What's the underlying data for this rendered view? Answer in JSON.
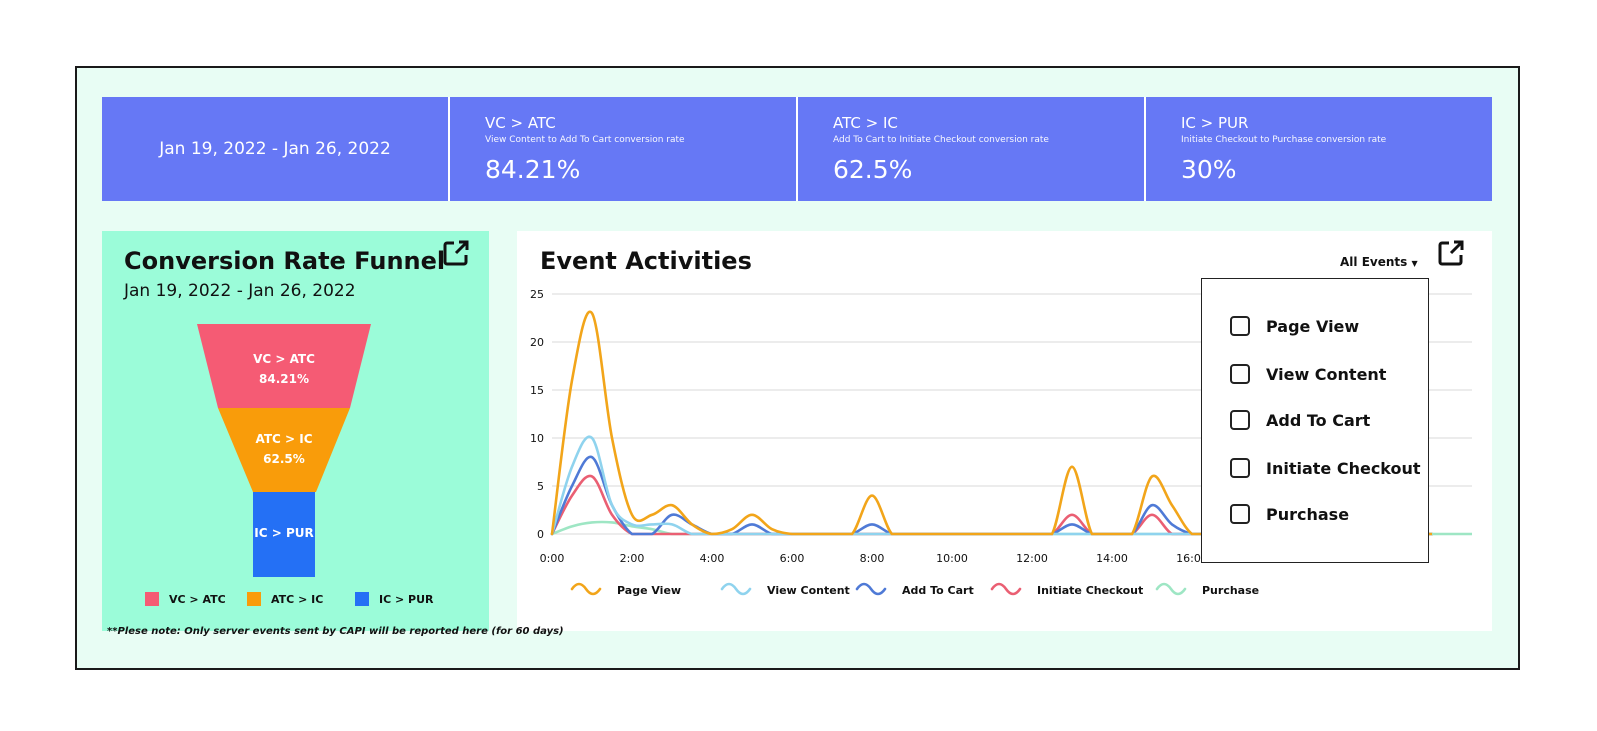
{
  "stats": {
    "date_range": "Jan 19, 2022 - Jan 26, 2022",
    "cards": [
      {
        "title": "VC > ATC",
        "subtitle": "View Content to Add To Cart conversion rate",
        "value": "84.21%"
      },
      {
        "title": "ATC > IC",
        "subtitle": "Add To Cart to Initiate Checkout conversion rate",
        "value": "62.5%"
      },
      {
        "title": "IC > PUR",
        "subtitle": "Initiate Checkout to Purchase conversion rate",
        "value": "30%"
      }
    ]
  },
  "funnel": {
    "title": "Conversion Rate Funnel",
    "date_range": "Jan 19, 2022 - Jan 26, 2022",
    "stages": [
      {
        "label": "VC > ATC",
        "value": "84.21%",
        "color": "#f55b74"
      },
      {
        "label": "ATC > IC",
        "value": "62.5%",
        "color": "#f99c0a"
      },
      {
        "label": "IC > PUR",
        "value": "",
        "color": "#2470f5"
      }
    ],
    "legend": [
      "VC > ATC",
      "ATC > IC",
      "IC > PUR"
    ]
  },
  "activity": {
    "title": "Event Activities",
    "filter_label": "All Events",
    "dropdown_options": [
      "Page View",
      "View Content",
      "Add To Cart",
      "Initiate Checkout",
      "Purchase"
    ]
  },
  "note": "**Plese note: Only server events sent by CAPI will be reported here (for 60 days)",
  "chart_data": {
    "type": "line",
    "x": [
      0,
      0.5,
      1,
      1.5,
      2,
      2.5,
      3,
      3.5,
      4,
      4.5,
      5,
      5.5,
      6,
      6.5,
      7,
      7.5,
      8,
      8.5,
      9,
      9.5,
      10,
      10.5,
      11,
      11.5,
      12,
      12.5,
      13,
      13.5,
      14,
      14.5,
      15,
      15.5,
      16,
      16.5,
      17,
      17.5,
      18,
      18.5,
      19,
      19.5,
      20,
      20.5,
      21,
      21.5,
      22
    ],
    "x_ticks": [
      "0:00",
      "2:00",
      "4:00",
      "6:00",
      "8:00",
      "10:00",
      "12:00",
      "14:00",
      "16:00"
    ],
    "y_ticks": [
      0,
      5,
      10,
      15,
      20,
      25
    ],
    "ylim": [
      0,
      25
    ],
    "xlim": [
      0,
      23
    ],
    "grid": true,
    "legend_position": "bottom",
    "series": [
      {
        "name": "Page View",
        "color": "#f2a51a",
        "values": [
          0,
          16,
          23,
          10,
          2,
          2,
          3,
          1,
          0,
          0.5,
          2,
          0.5,
          0,
          0,
          0,
          0,
          4,
          0,
          0,
          0,
          0,
          0,
          0,
          0,
          0,
          0,
          7,
          0,
          0,
          0,
          6,
          3,
          0,
          0,
          0,
          0,
          0,
          0,
          0,
          0,
          0,
          0,
          0,
          0,
          0
        ]
      },
      {
        "name": "View Content",
        "color": "#8fd3ee",
        "values": [
          0,
          7,
          10,
          3,
          1,
          1,
          1,
          0,
          0,
          0,
          0,
          0,
          0,
          0,
          0,
          0,
          0,
          0,
          0,
          0,
          0,
          0,
          0,
          0,
          0,
          0,
          0,
          0,
          0,
          0,
          0,
          0,
          0,
          0,
          0,
          0,
          0,
          0,
          0,
          0,
          0,
          0,
          0,
          0,
          0
        ]
      },
      {
        "name": "Add To Cart",
        "color": "#4f7ad6",
        "values": [
          0,
          5,
          8,
          3,
          0,
          0,
          2,
          1,
          0,
          0,
          1,
          0,
          0,
          0,
          0,
          0,
          1,
          0,
          0,
          0,
          0,
          0,
          0,
          0,
          0,
          0,
          1,
          0,
          0,
          0,
          3,
          1,
          0,
          0,
          0,
          0,
          0,
          0,
          0,
          0,
          0,
          0,
          0,
          0,
          0
        ]
      },
      {
        "name": "Initiate Checkout",
        "color": "#ea5f73",
        "values": [
          0,
          4,
          6,
          2,
          0,
          0,
          0,
          0,
          0,
          0,
          0,
          0,
          0,
          0,
          0,
          0,
          0,
          0,
          0,
          0,
          0,
          0,
          0,
          0,
          0,
          0,
          2,
          0,
          0,
          0,
          2,
          0,
          0,
          0,
          0,
          0,
          0,
          0,
          0,
          0,
          0,
          0,
          0,
          0,
          0
        ]
      },
      {
        "name": "Purchase",
        "color": "#9ee6c4",
        "values": [
          0,
          0.8,
          1.2,
          1.2,
          0.8,
          0.5,
          0,
          0,
          0,
          0,
          0,
          0,
          0,
          0,
          0,
          0,
          0,
          0,
          0,
          0,
          0,
          0,
          0,
          0,
          0,
          0,
          0,
          0,
          0,
          0,
          0,
          0,
          0,
          0,
          0,
          0,
          0,
          0,
          0,
          0,
          0,
          0,
          0,
          0,
          0
        ]
      }
    ]
  }
}
